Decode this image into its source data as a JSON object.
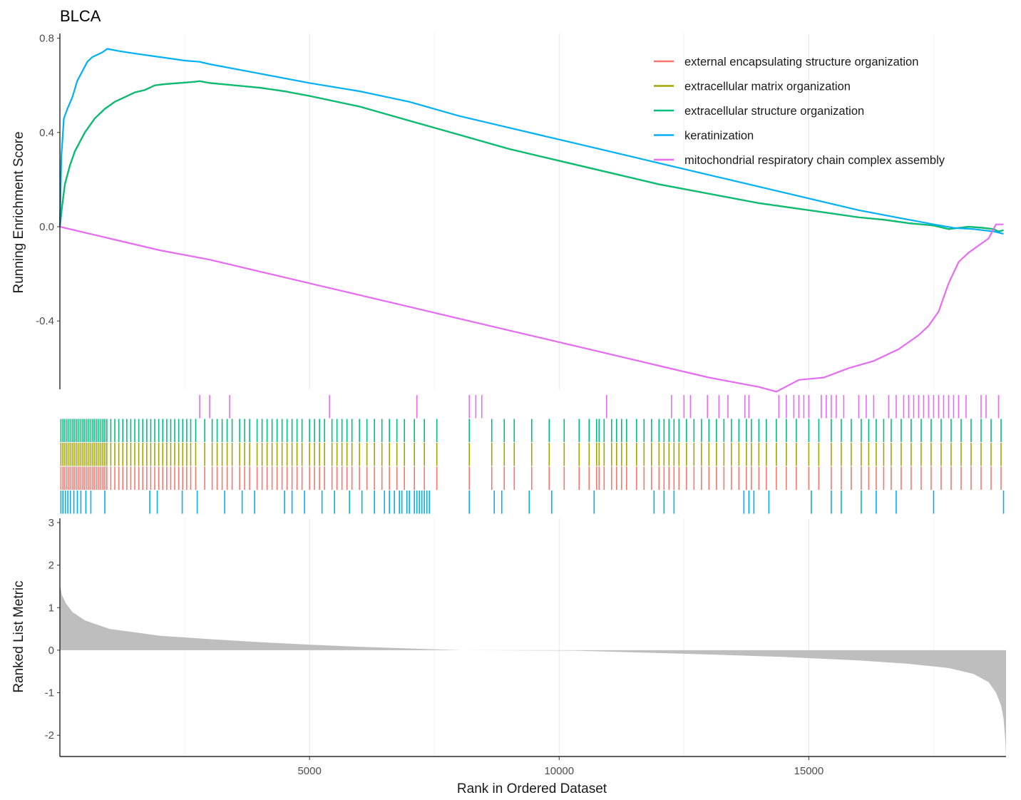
{
  "chart_data": {
    "type": "line",
    "title": "BLCA",
    "xlabel": "Rank in Ordered Dataset",
    "xlim": [
      0,
      18950
    ],
    "x_ticks": [
      5000,
      10000,
      15000
    ],
    "grid": "vertical",
    "panels": {
      "enrichment": {
        "ylabel": "Running Enrichment Score",
        "ylim": [
          -0.69,
          0.82
        ],
        "y_ticks": [
          -0.4,
          0.0,
          0.4,
          0.8
        ],
        "y_tick_labels": [
          "-0.4",
          "0.0",
          "0.4",
          "0.8"
        ]
      },
      "metric": {
        "ylabel": "Ranked List Metric",
        "ylim": [
          -2.5,
          3.1
        ],
        "y_ticks": [
          -2,
          -1,
          0,
          1,
          2,
          3
        ],
        "y_tick_labels": [
          "-2",
          "-1",
          "0",
          "1",
          "2",
          "3"
        ],
        "fill_color": "#bebebe",
        "profile_x": [
          0,
          40,
          120,
          250,
          500,
          1000,
          2000,
          3000,
          4000,
          5000,
          6000,
          7000,
          8050,
          10300,
          11500,
          13000,
          14500,
          16000,
          17000,
          17800,
          18300,
          18600,
          18750,
          18850,
          18900,
          18935,
          18950
        ],
        "profile_y": [
          1.55,
          1.3,
          1.1,
          0.9,
          0.7,
          0.5,
          0.34,
          0.26,
          0.19,
          0.13,
          0.08,
          0.04,
          0.0,
          -0.01,
          -0.05,
          -0.1,
          -0.16,
          -0.24,
          -0.32,
          -0.42,
          -0.56,
          -0.75,
          -1.0,
          -1.3,
          -1.6,
          -2.1,
          -2.45
        ]
      }
    },
    "legend": {
      "position": "top-right"
    },
    "series": [
      {
        "name": "external encapsulating structure organization",
        "color": "#f8766d",
        "x": [
          0,
          40,
          100,
          200,
          300,
          500,
          700,
          900,
          1100,
          1300,
          1500,
          1700,
          1900,
          2100,
          2400,
          2700,
          2800,
          3000,
          3500,
          4000,
          4500,
          5000,
          6000,
          7000,
          8000,
          9000,
          10000,
          11000,
          12000,
          13000,
          14000,
          15000,
          16000,
          16500,
          17000,
          17500,
          17800,
          18200,
          18500,
          18700,
          18800,
          18900
        ],
        "y": [
          0.0,
          0.08,
          0.18,
          0.26,
          0.32,
          0.4,
          0.46,
          0.5,
          0.53,
          0.55,
          0.57,
          0.58,
          0.6,
          0.605,
          0.61,
          0.615,
          0.618,
          0.61,
          0.6,
          0.59,
          0.575,
          0.555,
          0.51,
          0.45,
          0.39,
          0.33,
          0.28,
          0.23,
          0.18,
          0.14,
          0.1,
          0.07,
          0.04,
          0.03,
          0.015,
          0.005,
          -0.01,
          0.0,
          -0.005,
          -0.01,
          -0.02,
          -0.015
        ]
      },
      {
        "name": "extracellular matrix organization",
        "color": "#a3a500",
        "x": [
          0,
          40,
          100,
          200,
          300,
          500,
          700,
          900,
          1100,
          1300,
          1500,
          1700,
          1900,
          2100,
          2400,
          2700,
          2800,
          3000,
          3500,
          4000,
          4500,
          5000,
          6000,
          7000,
          8000,
          9000,
          10000,
          11000,
          12000,
          13000,
          14000,
          15000,
          16000,
          16500,
          17000,
          17500,
          17800,
          18200,
          18500,
          18700,
          18800,
          18900
        ],
        "y": [
          0.0,
          0.08,
          0.18,
          0.26,
          0.32,
          0.4,
          0.46,
          0.5,
          0.53,
          0.55,
          0.57,
          0.58,
          0.6,
          0.605,
          0.61,
          0.615,
          0.618,
          0.61,
          0.6,
          0.59,
          0.575,
          0.555,
          0.51,
          0.45,
          0.39,
          0.33,
          0.28,
          0.23,
          0.18,
          0.14,
          0.1,
          0.07,
          0.04,
          0.03,
          0.015,
          0.005,
          -0.01,
          0.0,
          -0.005,
          -0.01,
          -0.02,
          -0.015
        ]
      },
      {
        "name": "extracellular structure organization",
        "color": "#00bf7d",
        "x": [
          0,
          40,
          100,
          200,
          300,
          500,
          700,
          900,
          1100,
          1300,
          1500,
          1700,
          1900,
          2100,
          2400,
          2700,
          2800,
          3000,
          3500,
          4000,
          4500,
          5000,
          6000,
          7000,
          8000,
          9000,
          10000,
          11000,
          12000,
          13000,
          14000,
          15000,
          16000,
          16500,
          17000,
          17500,
          17800,
          18200,
          18500,
          18700,
          18800,
          18900
        ],
        "y": [
          0.0,
          0.08,
          0.18,
          0.26,
          0.32,
          0.4,
          0.46,
          0.5,
          0.53,
          0.55,
          0.57,
          0.58,
          0.6,
          0.605,
          0.61,
          0.615,
          0.618,
          0.61,
          0.6,
          0.59,
          0.575,
          0.555,
          0.51,
          0.45,
          0.39,
          0.33,
          0.28,
          0.23,
          0.18,
          0.14,
          0.1,
          0.07,
          0.04,
          0.03,
          0.015,
          0.005,
          -0.01,
          0.0,
          -0.005,
          -0.01,
          -0.02,
          -0.015
        ]
      },
      {
        "name": "keratinization",
        "color": "#00b0f6",
        "x": [
          0,
          30,
          80,
          150,
          250,
          350,
          450,
          550,
          650,
          750,
          850,
          950,
          1200,
          1500,
          2000,
          2500,
          2800,
          3000,
          4000,
          5000,
          6000,
          7000,
          8000,
          9000,
          10000,
          11000,
          12000,
          13000,
          14000,
          15000,
          16000,
          17000,
          17500,
          17900,
          18300,
          18700,
          18900
        ],
        "y": [
          0.0,
          0.3,
          0.46,
          0.5,
          0.55,
          0.62,
          0.66,
          0.7,
          0.72,
          0.73,
          0.74,
          0.755,
          0.745,
          0.735,
          0.72,
          0.705,
          0.7,
          0.69,
          0.65,
          0.61,
          0.575,
          0.53,
          0.47,
          0.42,
          0.37,
          0.32,
          0.27,
          0.22,
          0.17,
          0.12,
          0.07,
          0.03,
          0.01,
          -0.005,
          -0.01,
          -0.02,
          -0.03
        ]
      },
      {
        "name": "mitochondrial respiratory chain complex assembly",
        "color": "#e76bf3",
        "x": [
          0,
          1000,
          2000,
          3000,
          4000,
          5000,
          6000,
          7000,
          8000,
          9000,
          10000,
          11000,
          12000,
          13000,
          14000,
          14350,
          14800,
          15300,
          15800,
          16300,
          16800,
          17200,
          17400,
          17600,
          17800,
          18000,
          18200,
          18400,
          18600,
          18750,
          18900
        ],
        "y": [
          0.0,
          -0.05,
          -0.1,
          -0.14,
          -0.19,
          -0.24,
          -0.29,
          -0.34,
          -0.39,
          -0.44,
          -0.49,
          -0.54,
          -0.59,
          -0.64,
          -0.68,
          -0.7,
          -0.65,
          -0.64,
          -0.6,
          -0.57,
          -0.52,
          -0.46,
          -0.42,
          -0.36,
          -0.24,
          -0.15,
          -0.11,
          -0.08,
          -0.05,
          0.01,
          0.01
        ]
      }
    ],
    "hits": [
      {
        "name": "mitochondrial respiratory chain complex assembly",
        "positions": [
          2800,
          3000,
          3400,
          5400,
          7150,
          8200,
          8330,
          8450,
          10950,
          12250,
          12500,
          12630,
          12970,
          13200,
          13380,
          13720,
          13800,
          14400,
          14550,
          14700,
          14800,
          14900,
          15000,
          15250,
          15350,
          15450,
          15550,
          15700,
          16000,
          16150,
          16300,
          16600,
          16750,
          16900,
          17000,
          17100,
          17200,
          17300,
          17400,
          17500,
          17600,
          17700,
          17800,
          17900,
          18000,
          18150,
          18450,
          18550,
          18800
        ]
      },
      {
        "name": "extracellular structure organization",
        "positions": [
          20,
          60,
          100,
          140,
          180,
          220,
          260,
          300,
          340,
          380,
          420,
          460,
          500,
          540,
          580,
          620,
          660,
          700,
          740,
          780,
          820,
          860,
          900,
          940,
          1020,
          1100,
          1180,
          1260,
          1340,
          1420,
          1500,
          1580,
          1660,
          1740,
          1820,
          1900,
          1980,
          2060,
          2140,
          2220,
          2300,
          2380,
          2460,
          2540,
          2620,
          2720,
          2900,
          3050,
          3150,
          3250,
          3350,
          3450,
          3600,
          3700,
          3800,
          3950,
          4050,
          4150,
          4250,
          4350,
          4450,
          4550,
          4650,
          4750,
          4850,
          5000,
          5100,
          5200,
          5300,
          5450,
          5550,
          5650,
          5750,
          5850,
          6000,
          6150,
          6300,
          6450,
          6600,
          6750,
          6900,
          7100,
          7300,
          7550,
          8200,
          8650,
          8900,
          9100,
          9450,
          9800,
          10100,
          10400,
          10600,
          10750,
          10800,
          10900,
          11050,
          11150,
          11250,
          11350,
          11550,
          11700,
          11850,
          12000,
          12100,
          12200,
          12300,
          12400,
          12550,
          12700,
          12850,
          13000,
          13150,
          13300,
          13450,
          13600,
          13750,
          13850,
          14000,
          14150,
          14350,
          14550,
          14750,
          15000,
          15200,
          15450,
          15650,
          15850,
          16050,
          16200,
          16350,
          16500,
          16650,
          16850,
          17050,
          17250,
          17450,
          17650,
          17850,
          18050,
          18250,
          18450,
          18650,
          18850
        ]
      },
      {
        "name": "extracellular matrix organization",
        "positions": [
          20,
          60,
          100,
          140,
          180,
          220,
          260,
          300,
          340,
          380,
          420,
          460,
          500,
          540,
          580,
          620,
          660,
          700,
          740,
          780,
          820,
          860,
          900,
          940,
          1020,
          1100,
          1180,
          1260,
          1340,
          1420,
          1500,
          1580,
          1660,
          1740,
          1820,
          1900,
          1980,
          2060,
          2140,
          2220,
          2300,
          2380,
          2460,
          2540,
          2620,
          2720,
          2900,
          3050,
          3150,
          3250,
          3350,
          3450,
          3600,
          3700,
          3800,
          3950,
          4050,
          4150,
          4250,
          4350,
          4450,
          4550,
          4650,
          4750,
          4850,
          5000,
          5100,
          5200,
          5300,
          5450,
          5550,
          5650,
          5750,
          5850,
          6000,
          6150,
          6300,
          6450,
          6600,
          6750,
          6900,
          7100,
          7300,
          7550,
          8200,
          8650,
          8900,
          9100,
          9450,
          9800,
          10100,
          10400,
          10600,
          10750,
          10800,
          10900,
          11050,
          11150,
          11250,
          11350,
          11550,
          11700,
          11850,
          12000,
          12100,
          12200,
          12300,
          12400,
          12550,
          12700,
          12850,
          13000,
          13150,
          13300,
          13450,
          13600,
          13750,
          13850,
          14000,
          14150,
          14350,
          14550,
          14750,
          15000,
          15200,
          15450,
          15650,
          15850,
          16050,
          16200,
          16350,
          16500,
          16650,
          16850,
          17050,
          17250,
          17450,
          17650,
          17850,
          18050,
          18250,
          18450,
          18650,
          18850
        ]
      },
      {
        "name": "external encapsulating structure organization",
        "positions": [
          20,
          60,
          100,
          140,
          180,
          220,
          260,
          300,
          340,
          380,
          420,
          460,
          500,
          540,
          580,
          620,
          660,
          700,
          740,
          780,
          820,
          860,
          900,
          940,
          1020,
          1100,
          1180,
          1260,
          1340,
          1420,
          1500,
          1580,
          1660,
          1740,
          1820,
          1900,
          1980,
          2060,
          2140,
          2220,
          2300,
          2380,
          2460,
          2540,
          2620,
          2720,
          2900,
          3050,
          3150,
          3250,
          3350,
          3450,
          3600,
          3700,
          3800,
          3950,
          4050,
          4150,
          4250,
          4350,
          4450,
          4550,
          4650,
          4750,
          4850,
          5000,
          5100,
          5200,
          5300,
          5450,
          5550,
          5650,
          5750,
          5850,
          6000,
          6150,
          6300,
          6450,
          6600,
          6750,
          6900,
          7100,
          7300,
          7550,
          8200,
          8650,
          8900,
          9100,
          9450,
          9800,
          10100,
          10400,
          10600,
          10750,
          10800,
          10900,
          11050,
          11150,
          11250,
          11350,
          11550,
          11700,
          11850,
          12000,
          12100,
          12200,
          12300,
          12400,
          12550,
          12700,
          12850,
          13000,
          13150,
          13300,
          13450,
          13600,
          13750,
          13850,
          14000,
          14150,
          14350,
          14550,
          14750,
          15000,
          15200,
          15450,
          15650,
          15850,
          16050,
          16200,
          16350,
          16500,
          16650,
          16850,
          17050,
          17250,
          17450,
          17650,
          17850,
          18050,
          18250,
          18450,
          18650,
          18850
        ]
      },
      {
        "name": "keratinization",
        "positions": [
          20,
          60,
          110,
          160,
          210,
          280,
          350,
          420,
          520,
          620,
          900,
          1800,
          1950,
          2450,
          2750,
          3300,
          3650,
          3900,
          4500,
          4650,
          4900,
          5250,
          5500,
          5800,
          6050,
          6300,
          6500,
          6600,
          6700,
          6800,
          6850,
          6950,
          7000,
          7100,
          7150,
          7200,
          7250,
          7300,
          7350,
          7400,
          8200,
          8700,
          8850,
          9400,
          9850,
          10700,
          11900,
          12100,
          12300,
          13700,
          13800,
          13900,
          14200,
          15050,
          15450,
          15650,
          16050,
          16350,
          16750,
          17500,
          18900
        ]
      }
    ]
  }
}
